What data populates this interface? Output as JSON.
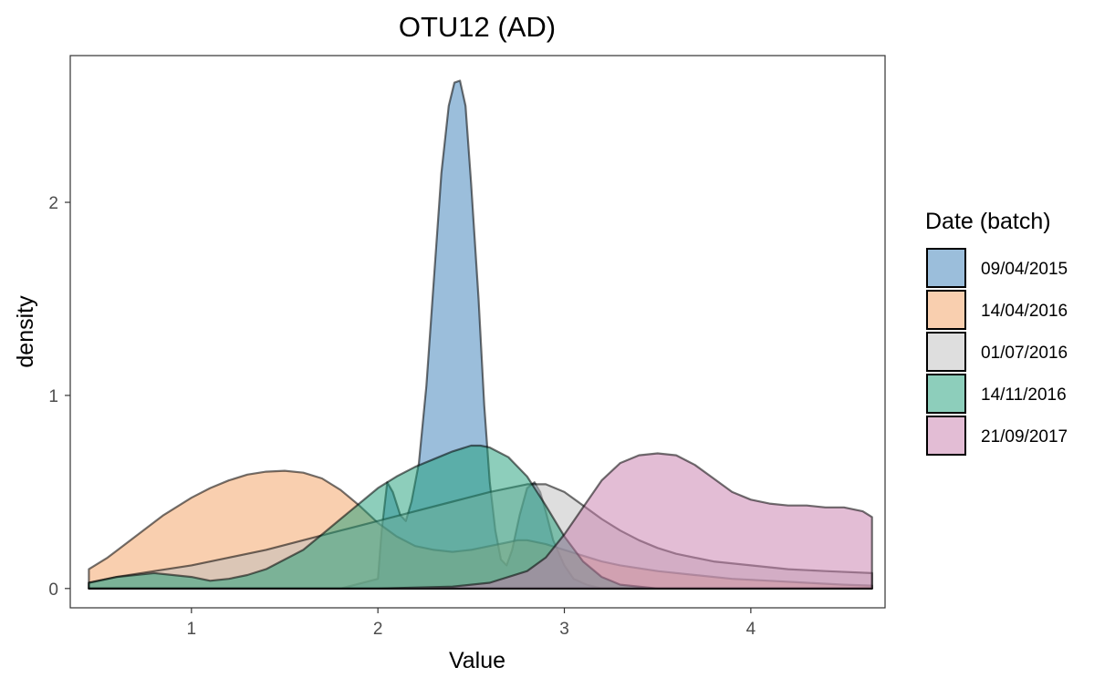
{
  "chart_data": {
    "type": "area",
    "title": "OTU12 (AD)",
    "xlabel": "Value",
    "ylabel": "density",
    "xlim": [
      0.35,
      4.72
    ],
    "ylim": [
      -0.1,
      2.76
    ],
    "xticks": [
      1,
      2,
      3,
      4
    ],
    "yticks": [
      0,
      1,
      2
    ],
    "grid": false,
    "legend_title": "Date (batch)",
    "legend_position": "right",
    "series": [
      {
        "name": "09/04/2015",
        "color": "#377EB8",
        "x": [
          0.45,
          1.8,
          2.0,
          2.02,
          2.05,
          2.08,
          2.12,
          2.15,
          2.18,
          2.22,
          2.26,
          2.3,
          2.34,
          2.38,
          2.41,
          2.44,
          2.47,
          2.5,
          2.54,
          2.57,
          2.6,
          2.63,
          2.66,
          2.69,
          2.72,
          2.76,
          2.8,
          2.84,
          2.87,
          2.9,
          2.94,
          3.0,
          3.05,
          3.12,
          3.2,
          4.65
        ],
        "y": [
          0,
          0,
          0.05,
          0.3,
          0.55,
          0.5,
          0.38,
          0.35,
          0.45,
          0.65,
          1.05,
          1.6,
          2.15,
          2.5,
          2.62,
          2.63,
          2.5,
          2.1,
          1.5,
          0.95,
          0.55,
          0.3,
          0.15,
          0.12,
          0.2,
          0.38,
          0.52,
          0.55,
          0.5,
          0.4,
          0.25,
          0.12,
          0.05,
          0.02,
          0,
          0
        ]
      },
      {
        "name": "14/04/2016",
        "color": "#F4A060",
        "x": [
          0.45,
          0.55,
          0.7,
          0.85,
          1.0,
          1.1,
          1.2,
          1.3,
          1.4,
          1.5,
          1.6,
          1.7,
          1.8,
          1.9,
          2.0,
          2.1,
          2.2,
          2.3,
          2.4,
          2.5,
          2.6,
          2.7,
          2.75,
          2.8,
          2.9,
          3.0,
          3.1,
          3.2,
          3.3,
          3.5,
          3.7,
          3.9,
          4.1,
          4.3,
          4.5,
          4.65
        ],
        "y": [
          0.1,
          0.16,
          0.27,
          0.38,
          0.47,
          0.52,
          0.56,
          0.59,
          0.605,
          0.61,
          0.6,
          0.57,
          0.51,
          0.43,
          0.34,
          0.27,
          0.22,
          0.2,
          0.19,
          0.2,
          0.22,
          0.24,
          0.25,
          0.25,
          0.23,
          0.2,
          0.17,
          0.14,
          0.12,
          0.09,
          0.07,
          0.05,
          0.04,
          0.03,
          0.02,
          0.015
        ]
      },
      {
        "name": "01/07/2016",
        "color": "#BDBDBD",
        "x": [
          0.45,
          0.6,
          0.8,
          1.0,
          1.2,
          1.4,
          1.6,
          1.8,
          2.0,
          2.2,
          2.4,
          2.6,
          2.8,
          2.9,
          3.0,
          3.1,
          3.2,
          3.3,
          3.4,
          3.5,
          3.6,
          3.8,
          4.0,
          4.2,
          4.4,
          4.65
        ],
        "y": [
          0.03,
          0.06,
          0.09,
          0.12,
          0.16,
          0.2,
          0.25,
          0.3,
          0.35,
          0.4,
          0.45,
          0.5,
          0.54,
          0.54,
          0.5,
          0.43,
          0.36,
          0.3,
          0.25,
          0.21,
          0.18,
          0.14,
          0.12,
          0.1,
          0.09,
          0.08
        ]
      },
      {
        "name": "14/11/2016",
        "color": "#1B9E77",
        "x": [
          0.45,
          0.6,
          0.8,
          1.0,
          1.1,
          1.2,
          1.3,
          1.4,
          1.5,
          1.6,
          1.7,
          1.8,
          1.9,
          2.0,
          2.1,
          2.2,
          2.3,
          2.4,
          2.5,
          2.55,
          2.6,
          2.7,
          2.8,
          2.9,
          3.0,
          3.1,
          3.2,
          3.3,
          3.5,
          4.65
        ],
        "y": [
          0.03,
          0.06,
          0.08,
          0.06,
          0.04,
          0.05,
          0.07,
          0.1,
          0.15,
          0.2,
          0.28,
          0.36,
          0.44,
          0.52,
          0.58,
          0.63,
          0.67,
          0.71,
          0.74,
          0.74,
          0.73,
          0.68,
          0.58,
          0.43,
          0.27,
          0.14,
          0.06,
          0.02,
          0,
          0
        ]
      },
      {
        "name": "21/09/2017",
        "color": "#C77CAB",
        "x": [
          0.45,
          2.0,
          2.4,
          2.6,
          2.8,
          2.9,
          3.0,
          3.1,
          3.2,
          3.3,
          3.4,
          3.5,
          3.6,
          3.7,
          3.8,
          3.9,
          4.0,
          4.1,
          4.2,
          4.3,
          4.4,
          4.5,
          4.6,
          4.65
        ],
        "y": [
          0,
          0,
          0.01,
          0.03,
          0.09,
          0.16,
          0.28,
          0.42,
          0.56,
          0.65,
          0.69,
          0.7,
          0.69,
          0.64,
          0.57,
          0.5,
          0.46,
          0.44,
          0.43,
          0.43,
          0.42,
          0.42,
          0.4,
          0.37
        ]
      }
    ]
  }
}
